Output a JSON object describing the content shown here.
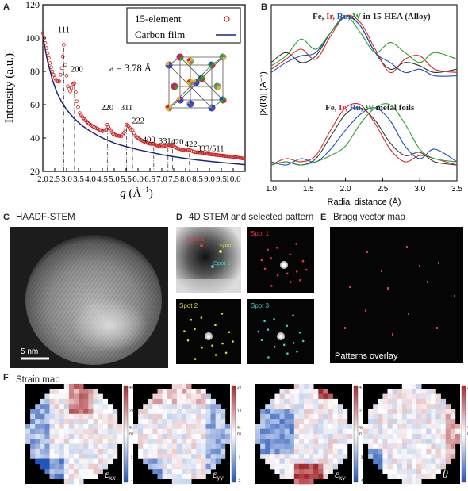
{
  "panels": {
    "A": {
      "letter": "A"
    },
    "B": {
      "letter": "B"
    },
    "C": {
      "letter": "C",
      "title": "HAADF-STEM",
      "scalebar_label": "5 nm"
    },
    "D": {
      "letter": "D",
      "title": "4D STEM and selected pattern",
      "spots": [
        "Spot 1",
        "Spot 2",
        "Spot 3"
      ],
      "spot_colors": [
        "#e03a3a",
        "#d8d83a",
        "#3ad0c0"
      ]
    },
    "E": {
      "letter": "E",
      "title": "Bragg vector map",
      "overlay_label": "Patterns overlay"
    },
    "F": {
      "letter": "F",
      "title": "Strain map",
      "maps": [
        {
          "symbol": "εxx",
          "sym_main": "ε",
          "sym_sub": "xx",
          "cb_top": "4.00",
          "cb_mid_hi": "2.00",
          "cb_zero": "0.00",
          "cb_mid_lo": "-2.00",
          "cb_bot": "-4.00",
          "unit": "%"
        },
        {
          "symbol": "εyy",
          "sym_main": "ε",
          "sym_sub": "yy",
          "cb_top": "2.00",
          "cb_mid_hi": "1.00",
          "cb_zero": "0.00",
          "cb_mid_lo": "-1.00",
          "cb_bot": "-2.00",
          "unit": "%"
        },
        {
          "symbol": "εxy",
          "sym_main": "ε",
          "sym_sub": "xy",
          "cb_top": "4.00",
          "cb_mid_hi": "2.00",
          "cb_zero": "0.00",
          "cb_mid_lo": "-2.00",
          "cb_bot": "-4.00",
          "unit": "%"
        },
        {
          "symbol": "θ",
          "sym_main": "θ",
          "sym_sub": "",
          "cb_top": "2.00",
          "cb_mid_hi": "1.00",
          "cb_zero": "0.00",
          "cb_mid_lo": "-1.00",
          "cb_bot": "-2.00",
          "unit": "°"
        }
      ]
    }
  },
  "colors": {
    "data_red": "#d01c1c",
    "film_blue": "#1a237e",
    "fe": "#333333",
    "ir": "#d62728",
    "ru": "#1f4fbf",
    "w": "#2ca02c"
  },
  "chart_data": [
    {
      "type": "scatter",
      "panel": "A",
      "xlabel": "q (Å⁻¹)",
      "xlabel_main": "q",
      "xlabel_unit": "(Å",
      "ylabel": "Intensity (a.u.)",
      "xlim": [
        2.0,
        10.5
      ],
      "ylim": [
        20,
        120
      ],
      "xticks": [
        2.0,
        2.5,
        3.0,
        3.5,
        4.0,
        4.5,
        5.0,
        5.5,
        6.0,
        6.5,
        7.0,
        7.5,
        8.0,
        8.5,
        9.0,
        9.5,
        10.0
      ],
      "xtick_labels": [
        "2.0",
        "2.5",
        "3.0",
        "3.5",
        "4.0",
        "4.5",
        "5.0",
        "5.5",
        "6.0",
        "6.5",
        "7.0",
        "7.5",
        "8.0",
        "8.5",
        "9.0",
        "9.5",
        "10.0"
      ],
      "yticks": [
        20,
        40,
        60,
        80,
        100,
        120
      ],
      "ytick_labels": [
        "20",
        "40",
        "60",
        "80",
        "100",
        "120"
      ],
      "legend": [
        {
          "label": "15-element",
          "marker": "open-circle",
          "color": "#d01c1c"
        },
        {
          "label": "Carbon film",
          "marker": "line",
          "color": "#1a237e"
        }
      ],
      "legend_position": "top-right",
      "annotation": "a = 3.78 Å",
      "peaks": [
        {
          "label": "111",
          "q": 2.88
        },
        {
          "label": "200",
          "q": 3.33
        },
        {
          "label": "220",
          "q": 4.71
        },
        {
          "label": "311",
          "q": 5.52
        },
        {
          "label": "222",
          "q": 5.77
        },
        {
          "label": "400",
          "q": 6.66
        },
        {
          "label": "331",
          "q": 7.26
        },
        {
          "label": "420",
          "q": 7.45
        },
        {
          "label": "422",
          "q": 8.16
        },
        {
          "label": "333/511",
          "q": 8.65
        }
      ],
      "series": [
        {
          "name": "15-element",
          "x": [
            2.0,
            2.1,
            2.2,
            2.3,
            2.4,
            2.5,
            2.6,
            2.7,
            2.8,
            2.88,
            2.95,
            3.05,
            3.15,
            3.25,
            3.33,
            3.42,
            3.55,
            3.7,
            3.9,
            4.1,
            4.3,
            4.5,
            4.65,
            4.71,
            4.8,
            4.95,
            5.1,
            5.3,
            5.45,
            5.52,
            5.6,
            5.7,
            5.77,
            5.9,
            6.1,
            6.3,
            6.5,
            6.66,
            6.8,
            7.0,
            7.26,
            7.45,
            7.7,
            8.0,
            8.16,
            8.4,
            8.65,
            8.9,
            9.2,
            9.5,
            9.8,
            10.1,
            10.5
          ],
          "y": [
            103,
            97,
            91,
            85,
            80,
            76,
            74,
            74,
            82,
            96,
            84,
            71,
            68,
            72,
            73,
            62,
            55,
            52,
            49,
            47,
            45.5,
            44,
            45,
            48,
            45.5,
            42.5,
            41.5,
            41,
            44,
            48,
            47,
            45,
            45,
            41,
            39,
            37.5,
            36.5,
            36.5,
            35.5,
            34.8,
            35.8,
            35.2,
            33.5,
            32.5,
            32.8,
            31.5,
            31.3,
            30.5,
            30,
            29.5,
            29,
            28.5,
            27.5
          ]
        },
        {
          "name": "Carbon film",
          "x": [
            2.0,
            2.2,
            2.4,
            2.6,
            2.8,
            3.0,
            3.3,
            3.6,
            4.0,
            4.5,
            5.0,
            5.5,
            6.0,
            6.5,
            7.0,
            7.5,
            8.0,
            8.5,
            9.0,
            9.5,
            10.0,
            10.5
          ],
          "y": [
            101,
            86,
            75,
            67,
            61.5,
            57,
            52,
            48,
            44,
            40,
            37,
            34.8,
            33,
            31.5,
            30,
            28.8,
            27.7,
            26.8,
            26,
            25.3,
            24.6,
            24
          ]
        }
      ]
    },
    {
      "type": "line",
      "panel": "B",
      "xlabel": "Radial distance (Å)",
      "ylabel": "|X(R)| (Å⁻³)",
      "xlim": [
        1.0,
        3.5
      ],
      "xticks": [
        1.0,
        1.5,
        2.0,
        2.5,
        3.0,
        3.5
      ],
      "xtick_labels": [
        "1.0",
        "1.5",
        "2.0",
        "2.5",
        "3.0",
        "3.5"
      ],
      "groups": [
        {
          "label_elements": [
            "Fe",
            "Ir",
            "Ru",
            "W"
          ],
          "label_suffix": "in 15-HEA (Alloy)",
          "series": [
            {
              "name": "Fe",
              "color": "#333333",
              "x": [
                1.0,
                1.2,
                1.4,
                1.6,
                1.8,
                2.0,
                2.2,
                2.4,
                2.6,
                2.8,
                3.0,
                3.2,
                3.5
              ],
              "y": [
                0.3,
                0.45,
                0.3,
                0.4,
                0.75,
                1.0,
                0.85,
                0.45,
                0.2,
                0.3,
                0.25,
                0.15,
                0.2
              ]
            },
            {
              "name": "Ir",
              "color": "#d62728",
              "x": [
                1.0,
                1.2,
                1.4,
                1.6,
                1.8,
                2.0,
                2.2,
                2.4,
                2.6,
                2.8,
                3.0,
                3.2,
                3.5
              ],
              "y": [
                0.2,
                0.35,
                0.5,
                0.35,
                0.7,
                1.0,
                0.9,
                0.5,
                0.15,
                0.35,
                0.4,
                0.2,
                0.15
              ]
            },
            {
              "name": "Ru",
              "color": "#1f4fbf",
              "x": [
                1.0,
                1.2,
                1.4,
                1.6,
                1.8,
                2.0,
                2.2,
                2.4,
                2.6,
                2.8,
                3.0,
                3.2,
                3.5
              ],
              "y": [
                0.15,
                0.3,
                0.4,
                0.45,
                0.75,
                0.98,
                0.85,
                0.45,
                0.3,
                0.15,
                0.2,
                0.1,
                0.1
              ]
            },
            {
              "name": "W",
              "color": "#2ca02c",
              "x": [
                1.0,
                1.2,
                1.4,
                1.6,
                1.8,
                2.0,
                2.2,
                2.4,
                2.6,
                2.8,
                3.0,
                3.2,
                3.5
              ],
              "y": [
                0.25,
                0.4,
                0.65,
                0.5,
                0.75,
                1.0,
                0.75,
                0.45,
                0.6,
                0.45,
                0.3,
                0.45,
                0.35
              ]
            }
          ]
        },
        {
          "label_elements": [
            "Fe",
            "Ir",
            "Ru",
            "W"
          ],
          "label_suffix": "metal foils",
          "series": [
            {
              "name": "Fe",
              "color": "#333333",
              "x": [
                1.0,
                1.2,
                1.4,
                1.6,
                1.8,
                2.0,
                2.2,
                2.4,
                2.6,
                2.8,
                3.0,
                3.2,
                3.5
              ],
              "y": [
                0.05,
                0.1,
                0.05,
                0.15,
                0.5,
                0.85,
                0.95,
                0.75,
                0.4,
                0.2,
                0.25,
                0.1,
                0.05
              ]
            },
            {
              "name": "Ir",
              "color": "#d62728",
              "x": [
                1.0,
                1.2,
                1.4,
                1.6,
                1.8,
                2.0,
                2.2,
                2.4,
                2.6,
                2.8,
                3.0,
                3.2,
                3.5
              ],
              "y": [
                0.05,
                0.15,
                0.1,
                0.2,
                0.6,
                0.95,
                1.0,
                0.7,
                0.3,
                0.1,
                0.2,
                0.15,
                0.05
              ]
            },
            {
              "name": "Ru",
              "color": "#1f4fbf",
              "x": [
                1.0,
                1.2,
                1.4,
                1.6,
                1.8,
                2.0,
                2.2,
                2.4,
                2.6,
                2.8,
                3.0,
                3.2,
                3.5
              ],
              "y": [
                0.1,
                0.05,
                0.15,
                0.1,
                0.3,
                0.6,
                0.85,
                0.95,
                0.75,
                0.35,
                0.15,
                0.3,
                0.1
              ]
            },
            {
              "name": "W",
              "color": "#2ca02c",
              "x": [
                1.0,
                1.2,
                1.4,
                1.6,
                1.8,
                2.0,
                2.2,
                2.4,
                2.6,
                2.8,
                3.0,
                3.2,
                3.5
              ],
              "y": [
                0.05,
                0.1,
                0.05,
                0.1,
                0.2,
                0.35,
                0.7,
                0.95,
                1.0,
                0.7,
                0.3,
                0.15,
                0.1
              ]
            }
          ]
        }
      ]
    }
  ]
}
